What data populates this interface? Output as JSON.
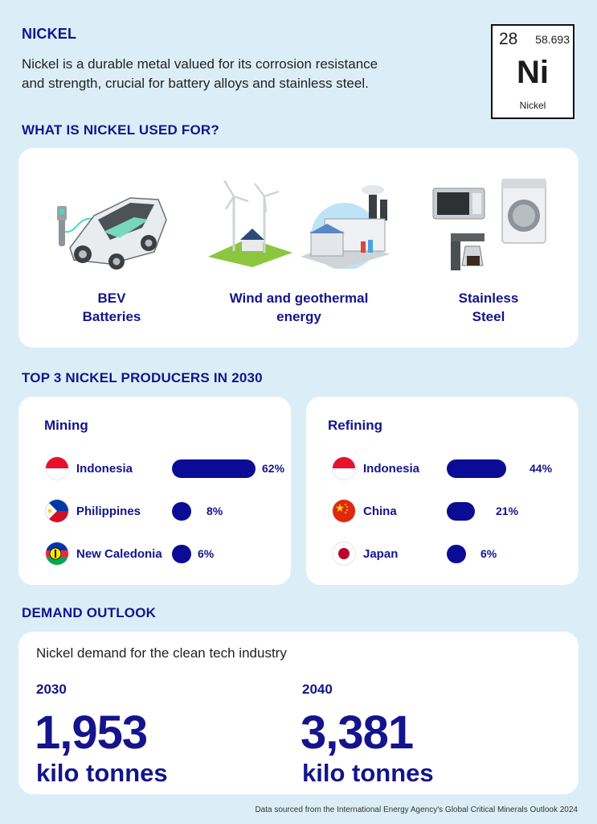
{
  "title": "NICKEL",
  "intro": {
    "line1": "Nickel is a durable metal valued for its corrosion resistance",
    "line2": "and strength, crucial for battery alloys and stainless steel."
  },
  "element": {
    "number": "28",
    "mass": "58.693",
    "symbol": "Ni",
    "name": "Nickel"
  },
  "uses": {
    "heading": "WHAT IS NICKEL USED FOR?",
    "items": [
      {
        "line1": "BEV",
        "line2": "Batteries",
        "icon": "electric-car-icon"
      },
      {
        "line1": "Wind and geothermal",
        "line2": "energy",
        "icon": "wind-factory-icon"
      },
      {
        "line1": "Stainless",
        "line2": "Steel",
        "icon": "appliances-icon"
      }
    ]
  },
  "producers": {
    "heading": "TOP 3 NICKEL PRODUCERS IN 2030",
    "mining": {
      "title": "Mining",
      "rows": [
        {
          "country": "Indonesia",
          "value": 62,
          "label": "62%"
        },
        {
          "country": "Philippines",
          "value": 8,
          "label": "8%"
        },
        {
          "country": "New Caledonia",
          "value": 6,
          "label": "6%"
        }
      ]
    },
    "refining": {
      "title": "Refining",
      "rows": [
        {
          "country": "Indonesia",
          "value": 44,
          "label": "44%"
        },
        {
          "country": "China",
          "value": 21,
          "label": "21%"
        },
        {
          "country": "Japan",
          "value": 6,
          "label": "6%"
        }
      ]
    }
  },
  "demand": {
    "heading": "DEMAND OUTLOOK",
    "subtitle": "Nickel demand for the clean tech industry",
    "year1": "2030",
    "value1": "1,953",
    "unit1": "kilo tonnes",
    "year2": "2040",
    "value2": "3,381",
    "unit2": "kilo tonnes"
  },
  "source": "Data sourced from the International Energy Agency's Global Critical Minerals Outlook 2024",
  "colors": {
    "navy": "#14148c",
    "bar": "#0b0b96",
    "background": "#dbeef7"
  }
}
